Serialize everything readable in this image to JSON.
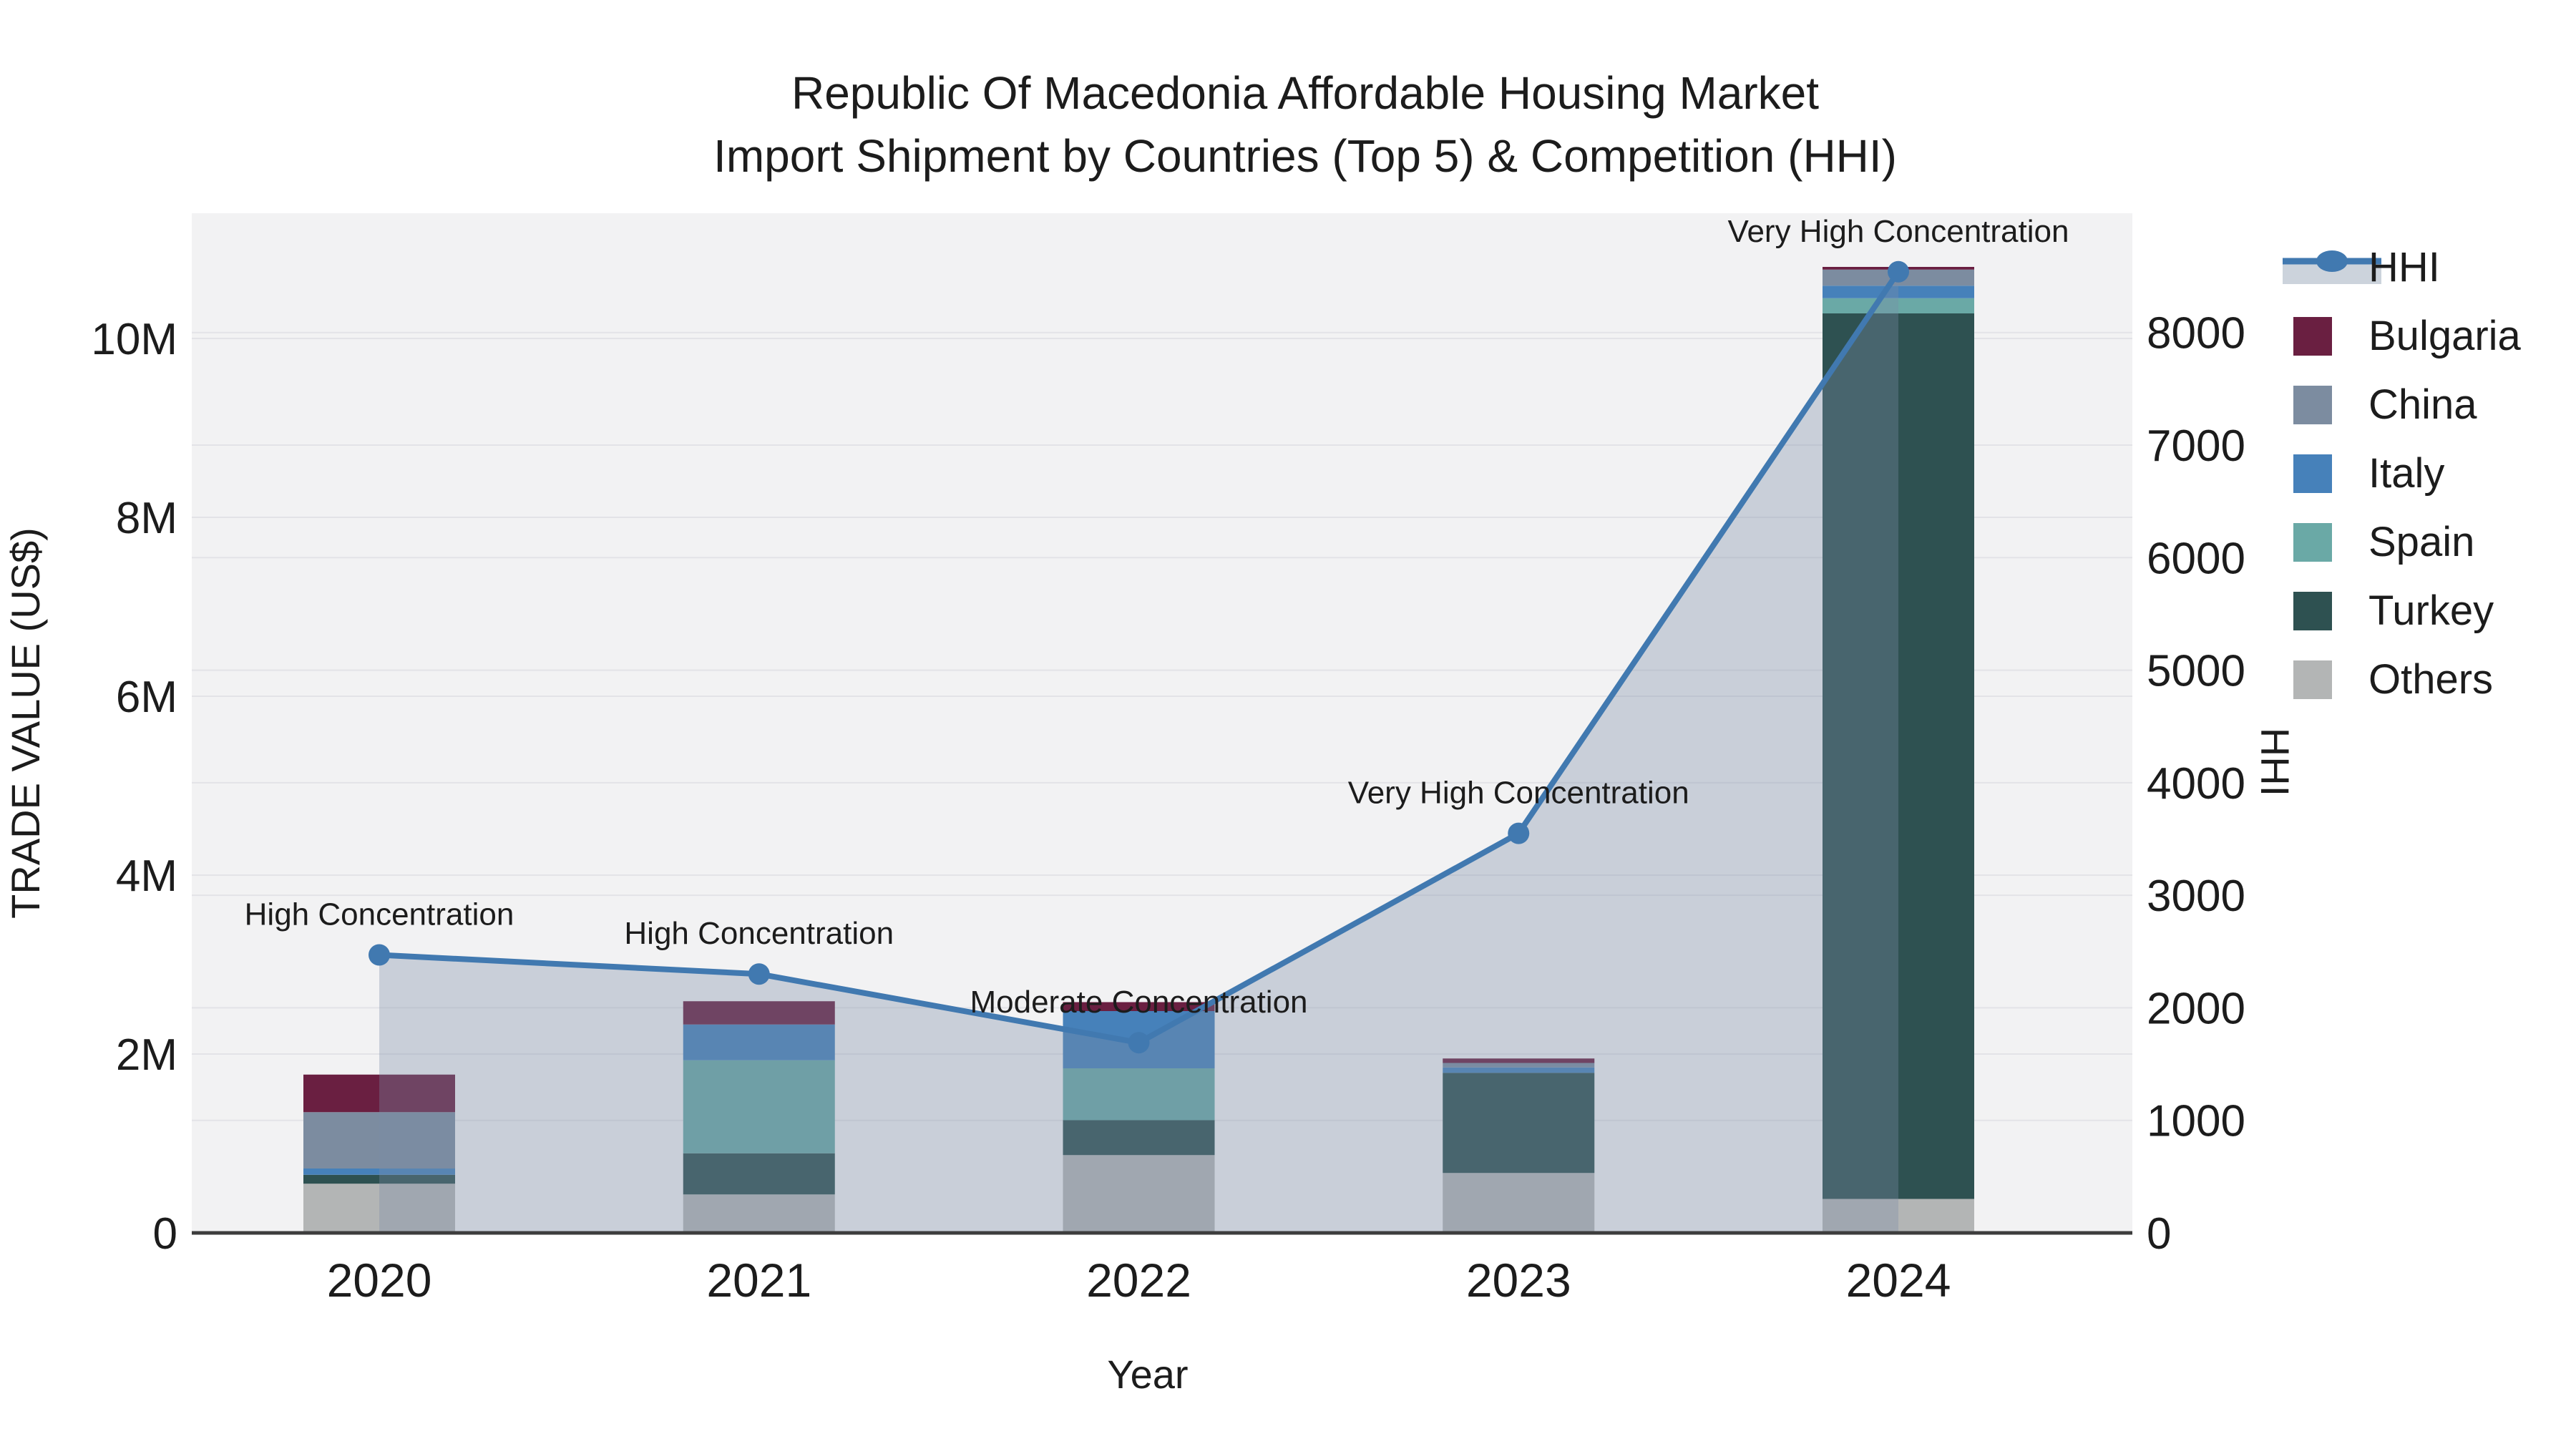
{
  "title": {
    "line1": "Republic Of Macedonia Affordable Housing Market",
    "line2": "Import Shipment by Countries (Top 5) & Competition (HHI)"
  },
  "chart_data": {
    "type": "bar",
    "subtype": "stacked-bar-with-line",
    "categories": [
      "2020",
      "2021",
      "2022",
      "2023",
      "2024"
    ],
    "bar_unit": "millions US$",
    "series": [
      {
        "name": "Others",
        "color": "#b3b5b5",
        "values": [
          0.55,
          0.43,
          0.87,
          0.67,
          0.38
        ]
      },
      {
        "name": "Turkey",
        "color": "#2e5151",
        "values": [
          0.1,
          0.46,
          0.39,
          1.12,
          9.9
        ]
      },
      {
        "name": "Spain",
        "color": "#6aa9a6",
        "values": [
          0.0,
          1.04,
          0.58,
          0.0,
          0.17
        ]
      },
      {
        "name": "Italy",
        "color": "#4681ba",
        "values": [
          0.07,
          0.4,
          0.64,
          0.06,
          0.14
        ]
      },
      {
        "name": "China",
        "color": "#7c8ca0",
        "values": [
          0.63,
          0.0,
          0.0,
          0.05,
          0.18
        ]
      },
      {
        "name": "Bulgaria",
        "color": "#6a1f41",
        "values": [
          0.42,
          0.26,
          0.1,
          0.05,
          0.03
        ]
      }
    ],
    "line_series": {
      "name": "HHI",
      "color": "#4179b0",
      "area_fill": "rgba(124,142,168,0.34)",
      "values": [
        2470,
        2300,
        1690,
        3550,
        8540
      ]
    },
    "annotations": [
      {
        "category": "2020",
        "text": "High Concentration"
      },
      {
        "category": "2021",
        "text": "High Concentration"
      },
      {
        "category": "2022",
        "text": "Moderate Concentration"
      },
      {
        "category": "2023",
        "text": "Very High Concentration"
      },
      {
        "category": "2024",
        "text": "Very High Concentration"
      }
    ],
    "xlabel": "Year",
    "y_left": {
      "label": "TRADE VALUE (US$)",
      "tick_labels": [
        "0",
        "2M",
        "4M",
        "6M",
        "8M",
        "10M"
      ],
      "tick_values": [
        0,
        2,
        4,
        6,
        8,
        10
      ],
      "range": [
        0,
        11.4
      ]
    },
    "y_right": {
      "label": "HHI",
      "tick_labels": [
        "0",
        "1000",
        "2000",
        "3000",
        "4000",
        "5000",
        "6000",
        "7000",
        "8000"
      ],
      "tick_values": [
        0,
        1000,
        2000,
        3000,
        4000,
        5000,
        6000,
        7000,
        8000
      ],
      "range": [
        0,
        9060
      ]
    },
    "grid": true,
    "legend_position": "right",
    "legend": [
      {
        "name": "HHI",
        "type": "line",
        "color": "#4179b0",
        "band": "#ccd3dc"
      },
      {
        "name": "Bulgaria",
        "type": "square",
        "color": "#6a1f41"
      },
      {
        "name": "China",
        "type": "square",
        "color": "#7c8ca0"
      },
      {
        "name": "Italy",
        "type": "square",
        "color": "#4681ba"
      },
      {
        "name": "Spain",
        "type": "square",
        "color": "#6aa9a6"
      },
      {
        "name": "Turkey",
        "type": "square",
        "color": "#2e5151"
      },
      {
        "name": "Others",
        "type": "square",
        "color": "#b3b5b5"
      }
    ],
    "colors": {
      "plot_bg": "#f2f2f3",
      "page_bg": "#ffffff",
      "grid": "#e3e3e7",
      "axis_line": "#3d3d3d",
      "text": "#1c1c1c"
    }
  }
}
